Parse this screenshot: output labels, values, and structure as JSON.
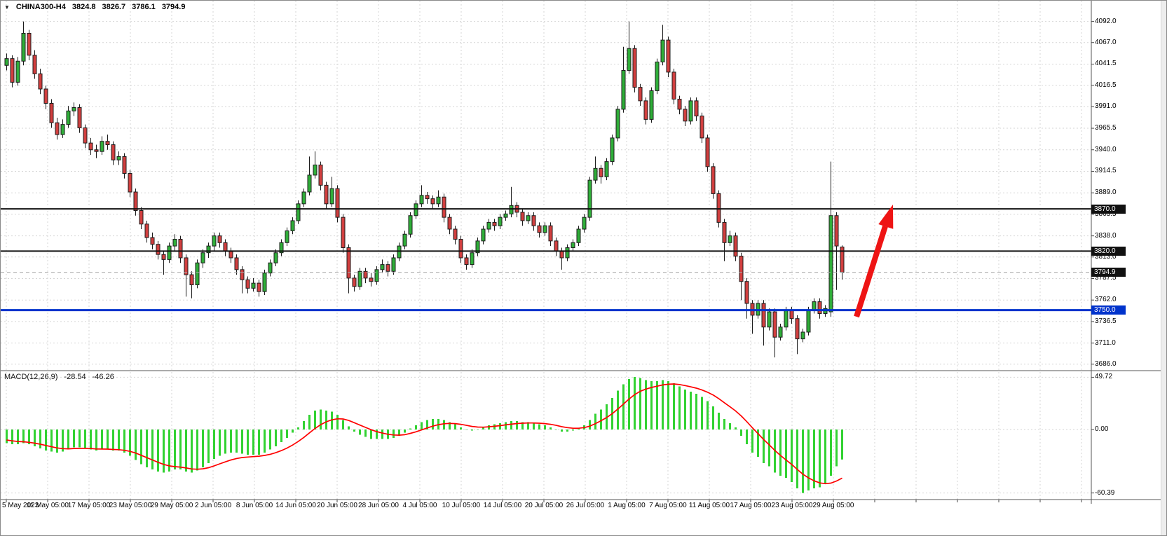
{
  "header": {
    "dropdown_icon": "▼",
    "symbol": "CHINA300-H4",
    "open": "3824.8",
    "high": "3826.7",
    "low": "3786.1",
    "close": "3794.9"
  },
  "price_axis": {
    "tags": [
      {
        "label": "3870.0",
        "price": 3870.0,
        "bg": "#111111"
      },
      {
        "label": "3820.0",
        "price": 3820.0,
        "bg": "#111111"
      },
      {
        "label": "3794.9",
        "price": 3794.9,
        "bg": "#111111"
      },
      {
        "label": "3750.0",
        "price": 3750.0,
        "bg": "#0033cc"
      }
    ]
  },
  "chart_data": [
    {
      "type": "candlestick",
      "symbol": "CHINA300-H4",
      "timeframe": "H4",
      "last_bar": {
        "open": 3824.8,
        "high": 3826.7,
        "low": 3786.1,
        "close": 3794.9
      },
      "y_ticks": [
        "4092.0",
        "4067.0",
        "4041.5",
        "4016.5",
        "3991.0",
        "3965.5",
        "3940.0",
        "3914.5",
        "3889.0",
        "3863.5",
        "3838.0",
        "3813.0",
        "3787.5",
        "3762.0",
        "3736.5",
        "3711.0",
        "3686.0"
      ],
      "x_labels": [
        "5 May 2023",
        "11 May 05:00",
        "17 May 05:00",
        "23 May 05:00",
        "29 May 05:00",
        "2 Jun 05:00",
        "8 Jun 05:00",
        "14 Jun 05:00",
        "20 Jun 05:00",
        "28 Jun 05:00",
        "4 Jul 05:00",
        "10 Jul 05:00",
        "14 Jul 05:00",
        "20 Jul 05:00",
        "26 Jul 05:00",
        "1 Aug 05:00",
        "7 Aug 05:00",
        "11 Aug 05:00",
        "17 Aug 05:00",
        "23 Aug 05:00",
        "29 Aug 05:00"
      ],
      "hlines": [
        {
          "price": 3870.0,
          "color": "#111111",
          "width": 2,
          "style": "solid",
          "label": "3870.0"
        },
        {
          "price": 3820.0,
          "color": "#111111",
          "width": 2,
          "style": "solid",
          "label": "3820.0"
        },
        {
          "price": 3750.0,
          "color": "#0033cc",
          "width": 3,
          "style": "solid",
          "label": "3750.0"
        },
        {
          "price": 3794.9,
          "color": "#a8a8a8",
          "width": 1,
          "style": "dashed",
          "label": "3794.9"
        }
      ],
      "up_color": "#2fae39",
      "down_color": "#d23f3f",
      "outline_color": "#1c1c1c",
      "candles": [
        [
          4040,
          4054,
          4034,
          4048
        ],
        [
          4048,
          4052,
          4014,
          4020
        ],
        [
          4020,
          4050,
          4016,
          4045
        ],
        [
          4045,
          4092,
          4040,
          4078
        ],
        [
          4078,
          4082,
          4046,
          4052
        ],
        [
          4052,
          4058,
          4024,
          4030
        ],
        [
          4030,
          4036,
          4006,
          4012
        ],
        [
          4012,
          4016,
          3988,
          3995
        ],
        [
          3995,
          4000,
          3966,
          3972
        ],
        [
          3972,
          3978,
          3952,
          3958
        ],
        [
          3958,
          3976,
          3954,
          3970
        ],
        [
          3970,
          3992,
          3966,
          3986
        ],
        [
          3986,
          3996,
          3980,
          3990
        ],
        [
          3990,
          3994,
          3960,
          3966
        ],
        [
          3966,
          3970,
          3942,
          3948
        ],
        [
          3948,
          3954,
          3934,
          3940
        ],
        [
          3940,
          3946,
          3930,
          3938
        ],
        [
          3938,
          3956,
          3934,
          3950
        ],
        [
          3950,
          3958,
          3940,
          3946
        ],
        [
          3946,
          3950,
          3922,
          3928
        ],
        [
          3928,
          3938,
          3922,
          3932
        ],
        [
          3932,
          3936,
          3906,
          3912
        ],
        [
          3912,
          3916,
          3884,
          3890
        ],
        [
          3890,
          3894,
          3862,
          3868
        ],
        [
          3868,
          3872,
          3846,
          3852
        ],
        [
          3852,
          3856,
          3830,
          3836
        ],
        [
          3836,
          3842,
          3822,
          3828
        ],
        [
          3828,
          3832,
          3810,
          3816
        ],
        [
          3816,
          3820,
          3792,
          3810
        ],
        [
          3810,
          3830,
          3806,
          3826
        ],
        [
          3826,
          3840,
          3820,
          3834
        ],
        [
          3834,
          3838,
          3806,
          3812
        ],
        [
          3812,
          3816,
          3766,
          3792
        ],
        [
          3792,
          3796,
          3764,
          3780
        ],
        [
          3780,
          3810,
          3776,
          3806
        ],
        [
          3806,
          3822,
          3800,
          3818
        ],
        [
          3818,
          3830,
          3812,
          3826
        ],
        [
          3826,
          3842,
          3820,
          3838
        ],
        [
          3838,
          3842,
          3824,
          3830
        ],
        [
          3830,
          3834,
          3814,
          3820
        ],
        [
          3820,
          3824,
          3806,
          3812
        ],
        [
          3812,
          3816,
          3792,
          3798
        ],
        [
          3798,
          3802,
          3770,
          3786
        ],
        [
          3786,
          3790,
          3770,
          3776
        ],
        [
          3776,
          3788,
          3772,
          3782
        ],
        [
          3782,
          3786,
          3766,
          3772
        ],
        [
          3772,
          3798,
          3768,
          3794
        ],
        [
          3794,
          3810,
          3790,
          3806
        ],
        [
          3806,
          3822,
          3802,
          3818
        ],
        [
          3818,
          3834,
          3814,
          3830
        ],
        [
          3830,
          3848,
          3826,
          3844
        ],
        [
          3844,
          3860,
          3840,
          3856
        ],
        [
          3856,
          3880,
          3852,
          3876
        ],
        [
          3876,
          3894,
          3872,
          3890
        ],
        [
          3890,
          3932,
          3886,
          3910
        ],
        [
          3910,
          3938,
          3906,
          3922
        ],
        [
          3922,
          3926,
          3892,
          3898
        ],
        [
          3898,
          3902,
          3870,
          3876
        ],
        [
          3876,
          3908,
          3872,
          3894
        ],
        [
          3894,
          3898,
          3854,
          3860
        ],
        [
          3860,
          3864,
          3818,
          3824
        ],
        [
          3824,
          3828,
          3770,
          3788
        ],
        [
          3788,
          3792,
          3772,
          3778
        ],
        [
          3778,
          3800,
          3774,
          3796
        ],
        [
          3796,
          3800,
          3782,
          3788
        ],
        [
          3788,
          3794,
          3778,
          3784
        ],
        [
          3784,
          3802,
          3780,
          3798
        ],
        [
          3798,
          3810,
          3794,
          3804
        ],
        [
          3804,
          3808,
          3790,
          3796
        ],
        [
          3796,
          3816,
          3792,
          3812
        ],
        [
          3812,
          3830,
          3808,
          3826
        ],
        [
          3826,
          3844,
          3822,
          3840
        ],
        [
          3840,
          3866,
          3836,
          3862
        ],
        [
          3862,
          3880,
          3858,
          3876
        ],
        [
          3876,
          3898,
          3872,
          3886
        ],
        [
          3886,
          3890,
          3876,
          3882
        ],
        [
          3882,
          3886,
          3870,
          3876
        ],
        [
          3876,
          3892,
          3872,
          3884
        ],
        [
          3884,
          3888,
          3854,
          3860
        ],
        [
          3860,
          3864,
          3840,
          3846
        ],
        [
          3846,
          3850,
          3828,
          3834
        ],
        [
          3834,
          3838,
          3806,
          3812
        ],
        [
          3812,
          3816,
          3798,
          3804
        ],
        [
          3804,
          3822,
          3800,
          3818
        ],
        [
          3818,
          3836,
          3814,
          3832
        ],
        [
          3832,
          3850,
          3828,
          3846
        ],
        [
          3846,
          3858,
          3842,
          3854
        ],
        [
          3854,
          3858,
          3844,
          3850
        ],
        [
          3850,
          3864,
          3846,
          3860
        ],
        [
          3860,
          3868,
          3856,
          3864
        ],
        [
          3864,
          3896,
          3860,
          3874
        ],
        [
          3874,
          3878,
          3860,
          3866
        ],
        [
          3866,
          3870,
          3850,
          3856
        ],
        [
          3856,
          3866,
          3852,
          3862
        ],
        [
          3862,
          3866,
          3844,
          3850
        ],
        [
          3850,
          3854,
          3836,
          3842
        ],
        [
          3842,
          3854,
          3838,
          3850
        ],
        [
          3850,
          3854,
          3826,
          3832
        ],
        [
          3832,
          3836,
          3814,
          3820
        ],
        [
          3820,
          3824,
          3798,
          3812
        ],
        [
          3812,
          3828,
          3808,
          3824
        ],
        [
          3824,
          3834,
          3820,
          3830
        ],
        [
          3830,
          3850,
          3826,
          3846
        ],
        [
          3846,
          3864,
          3842,
          3860
        ],
        [
          3860,
          3908,
          3856,
          3904
        ],
        [
          3904,
          3932,
          3900,
          3918
        ],
        [
          3918,
          3922,
          3900,
          3908
        ],
        [
          3908,
          3930,
          3904,
          3926
        ],
        [
          3926,
          3958,
          3922,
          3954
        ],
        [
          3954,
          3992,
          3950,
          3988
        ],
        [
          3988,
          4062,
          3984,
          4034
        ],
        [
          4034,
          4092,
          4030,
          4060
        ],
        [
          4060,
          4064,
          4008,
          4014
        ],
        [
          4014,
          4018,
          3992,
          3998
        ],
        [
          3998,
          4002,
          3970,
          3976
        ],
        [
          3976,
          4014,
          3972,
          4010
        ],
        [
          4010,
          4048,
          4006,
          4044
        ],
        [
          4044,
          4088,
          4040,
          4070
        ],
        [
          4070,
          4074,
          4026,
          4032
        ],
        [
          4032,
          4036,
          3994,
          4000
        ],
        [
          4000,
          4004,
          3982,
          3988
        ],
        [
          3988,
          3992,
          3968,
          3974
        ],
        [
          3974,
          4002,
          3970,
          3998
        ],
        [
          3998,
          4002,
          3974,
          3980
        ],
        [
          3980,
          3984,
          3948,
          3954
        ],
        [
          3954,
          3958,
          3914,
          3920
        ],
        [
          3920,
          3924,
          3882,
          3888
        ],
        [
          3888,
          3892,
          3848,
          3854
        ],
        [
          3854,
          3858,
          3808,
          3830
        ],
        [
          3830,
          3844,
          3826,
          3838
        ],
        [
          3838,
          3842,
          3808,
          3814
        ],
        [
          3814,
          3818,
          3762,
          3784
        ],
        [
          3784,
          3788,
          3740,
          3758
        ],
        [
          3758,
          3762,
          3722,
          3744
        ],
        [
          3744,
          3762,
          3740,
          3758
        ],
        [
          3758,
          3762,
          3708,
          3730
        ],
        [
          3730,
          3752,
          3726,
          3748
        ],
        [
          3748,
          3752,
          3694,
          3718
        ],
        [
          3718,
          3734,
          3714,
          3730
        ],
        [
          3730,
          3754,
          3726,
          3750
        ],
        [
          3750,
          3754,
          3734,
          3740
        ],
        [
          3740,
          3744,
          3698,
          3716
        ],
        [
          3716,
          3728,
          3712,
          3724
        ],
        [
          3724,
          3754,
          3720,
          3750
        ],
        [
          3750,
          3764,
          3746,
          3760
        ],
        [
          3760,
          3764,
          3740,
          3746
        ],
        [
          3746,
          3756,
          3742,
          3752
        ],
        [
          3748,
          3926,
          3742,
          3862
        ],
        [
          3862,
          3866,
          3774,
          3826
        ],
        [
          3824.8,
          3826.7,
          3786.1,
          3794.9
        ]
      ]
    },
    {
      "type": "macd",
      "label": "MACD(12,26,9)",
      "macd_value": "-28.54",
      "signal_value": "-46.26",
      "y_ticks": [
        "49.72",
        "0.00",
        "-60.39"
      ],
      "histogram_color": "#32d232",
      "signal_color": "#ff0000",
      "histogram": [
        -13,
        -14,
        -14,
        -13,
        -14,
        -16,
        -18,
        -20,
        -21,
        -22,
        -21,
        -19,
        -17,
        -17,
        -18,
        -19,
        -20,
        -19,
        -19,
        -20,
        -20,
        -22,
        -25,
        -29,
        -33,
        -36,
        -38,
        -40,
        -41,
        -40,
        -38,
        -38,
        -40,
        -41,
        -39,
        -36,
        -32,
        -28,
        -25,
        -23,
        -22,
        -22,
        -23,
        -24,
        -24,
        -24,
        -22,
        -19,
        -16,
        -12,
        -8,
        -3,
        2,
        8,
        14,
        18,
        19,
        18,
        17,
        14,
        9,
        3,
        -2,
        -5,
        -7,
        -9,
        -9,
        -9,
        -9,
        -8,
        -6,
        -3,
        1,
        4,
        7,
        9,
        10,
        10,
        9,
        7,
        5,
        2,
        0,
        -1,
        0,
        2,
        4,
        5,
        6,
        7,
        8,
        8,
        7,
        7,
        6,
        5,
        4,
        2,
        0,
        -2,
        -2,
        -1,
        1,
        4,
        9,
        15,
        19,
        24,
        30,
        37,
        43,
        48,
        50,
        49,
        47,
        46,
        46,
        47,
        46,
        44,
        41,
        38,
        36,
        34,
        31,
        27,
        22,
        16,
        10,
        6,
        2,
        -6,
        -14,
        -22,
        -26,
        -32,
        -35,
        -41,
        -44,
        -46,
        -50,
        -56,
        -60.39,
        -58,
        -56,
        -55,
        -52,
        -44,
        -35,
        -28.54
      ],
      "signal": [
        -10,
        -10.8,
        -11.4,
        -11.7,
        -12.2,
        -13,
        -14,
        -15.2,
        -16.4,
        -17.5,
        -18.2,
        -18.4,
        -18.1,
        -17.9,
        -17.9,
        -18.1,
        -18.5,
        -18.6,
        -18.7,
        -19,
        -19.2,
        -19.8,
        -20.8,
        -22.4,
        -24.5,
        -26.8,
        -29,
        -31.2,
        -33.2,
        -34.6,
        -35.3,
        -35.8,
        -36.6,
        -37.5,
        -37.8,
        -37.4,
        -36.3,
        -34.6,
        -32.7,
        -30.8,
        -29,
        -27.6,
        -26.7,
        -26.2,
        -25.8,
        -25.4,
        -24.7,
        -23.6,
        -22.1,
        -20.1,
        -17.7,
        -14.8,
        -11.4,
        -7.5,
        -3.2,
        1,
        4.6,
        7.3,
        9.2,
        10.2,
        10,
        8.6,
        6.5,
        4.2,
        2,
        -0.2,
        -2,
        -3.4,
        -4.5,
        -5.2,
        -5.4,
        -4.9,
        -3.7,
        -2.2,
        -0.4,
        1.5,
        3.2,
        4.6,
        5.5,
        5.8,
        5.6,
        4.9,
        3.9,
        2.9,
        2.3,
        2.2,
        2.6,
        3.1,
        3.7,
        4.4,
        5.1,
        5.7,
        6,
        6.2,
        6.2,
        6,
        5.6,
        4.9,
        3.9,
        2.7,
        1.8,
        1.2,
        1.2,
        1.8,
        3.2,
        5.6,
        8.3,
        11.4,
        15.1,
        19.5,
        24.2,
        29,
        33.2,
        36.4,
        38.5,
        40,
        41.2,
        42.4,
        43.1,
        43.3,
        42.8,
        41.8,
        40.6,
        39.3,
        37.6,
        35.5,
        32.8,
        29.4,
        25.5,
        21.6,
        17.7,
        12.9,
        7.5,
        1.6,
        -3.9,
        -9.5,
        -14.6,
        -19.9,
        -24.7,
        -29,
        -33.2,
        -38,
        -42.5,
        -46,
        -48.8,
        -50.8,
        -51.5,
        -51,
        -49,
        -46.26
      ]
    }
  ],
  "annotations": [
    {
      "type": "up-arrow",
      "color": "#ee1414",
      "from_price": 3752,
      "to_price": 3874
    }
  ]
}
